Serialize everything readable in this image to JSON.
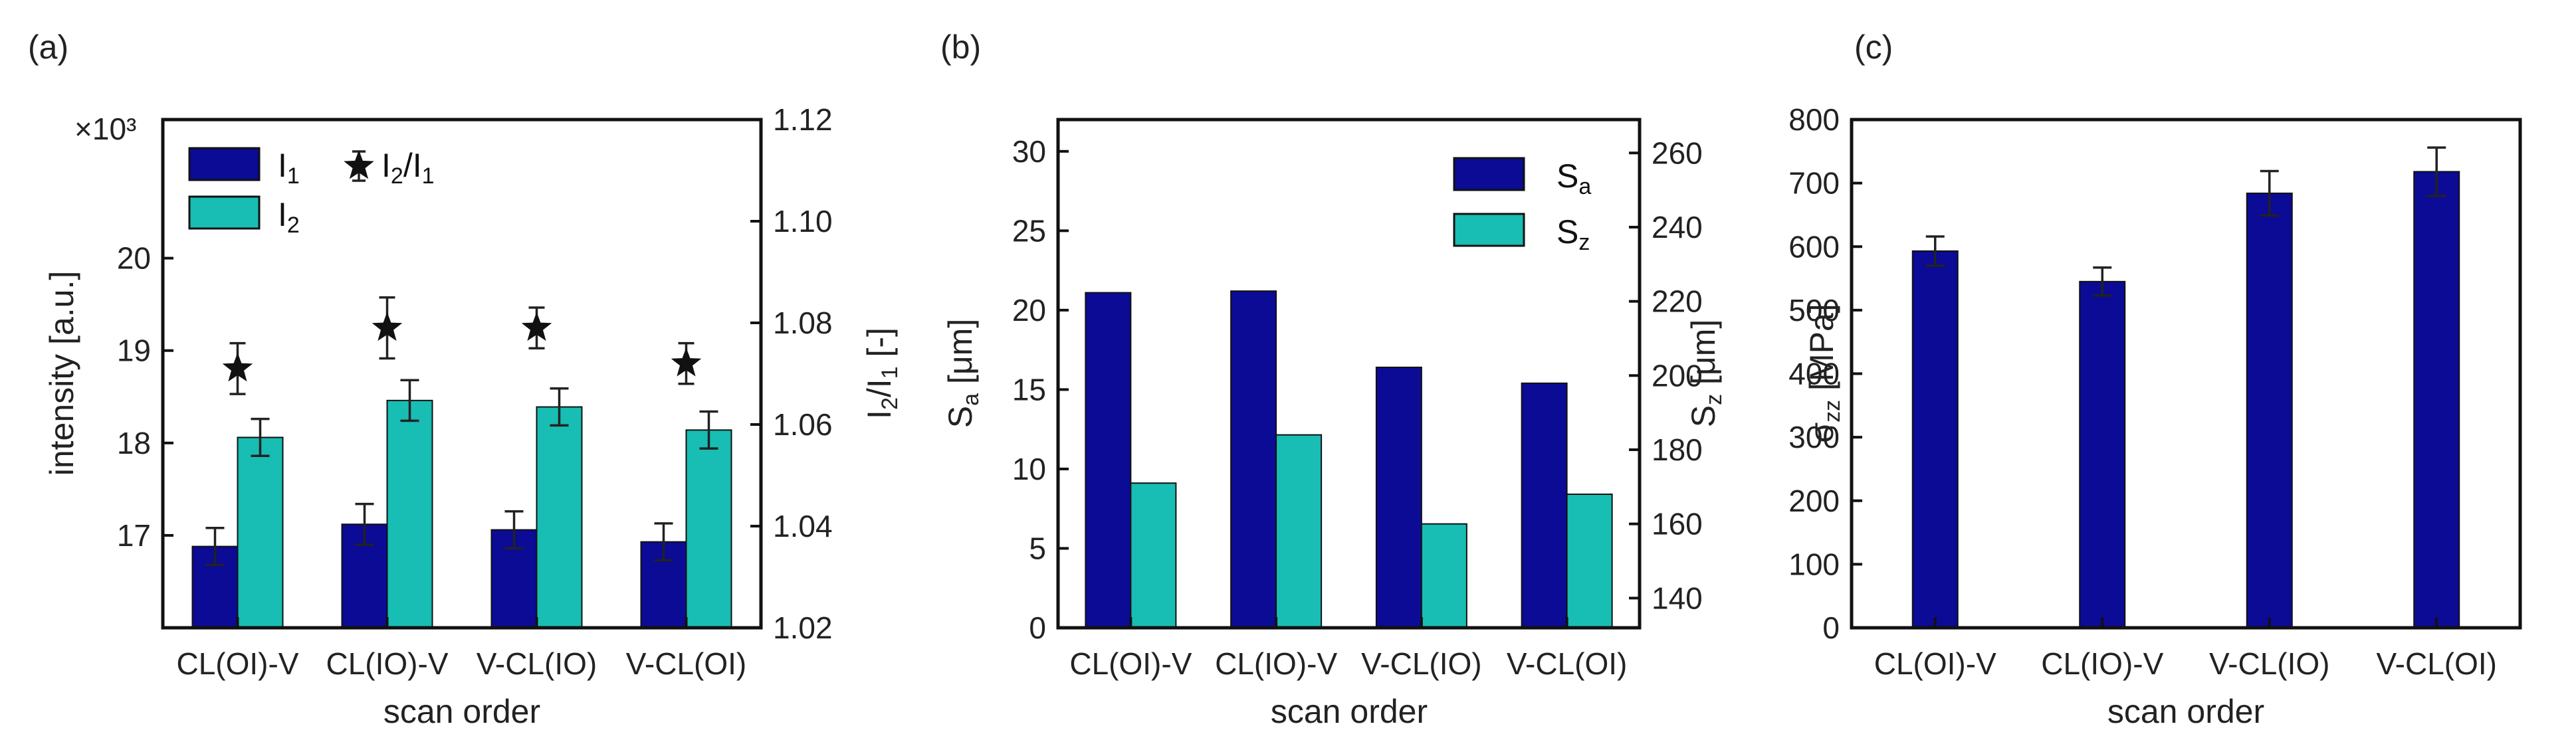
{
  "colors": {
    "series1": "#0b0b96",
    "series2": "#18bdb3",
    "axis_left_b": "#1a1a8c",
    "axis_right_b": "#2aa39b",
    "marker": "#111111"
  },
  "chart_data": [
    {
      "panel": "(a)",
      "type": "bar",
      "categories": [
        "CL(OI)-V",
        "CL(IO)-V",
        "V-CL(IO)",
        "V-CL(OI)"
      ],
      "xlabel": "scan order",
      "ylabel": "intensity [a.u.]",
      "ylabel_right": "I2/I1 [-]",
      "multiplier": "×10³",
      "ylim": [
        16.0,
        21.5
      ],
      "yticks": [
        "17",
        "18",
        "19",
        "20"
      ],
      "yticks_values": [
        17,
        18,
        19,
        20
      ],
      "ylim_right": [
        1.02,
        1.12
      ],
      "yticks_right": [
        "1.02",
        "1.04",
        "1.06",
        "1.08",
        "1.10",
        "1.12"
      ],
      "yticks_right_values": [
        1.02,
        1.04,
        1.06,
        1.08,
        1.1,
        1.12
      ],
      "legend": [
        {
          "kind": "bar",
          "series": 0,
          "base": "I",
          "sub": "1"
        },
        {
          "kind": "bar",
          "series": 1,
          "base": "I",
          "sub": "2"
        },
        {
          "kind": "star",
          "parts": [
            [
              "I",
              ""
            ],
            [
              "2",
              "sub"
            ],
            [
              "/I",
              ""
            ],
            [
              "1",
              "sub"
            ]
          ]
        }
      ],
      "series": [
        {
          "name": "I1",
          "values": [
            16.88,
            17.12,
            17.06,
            16.93
          ],
          "errors": [
            0.2,
            0.22,
            0.2,
            0.2
          ]
        },
        {
          "name": "I2",
          "values": [
            18.06,
            18.46,
            18.39,
            18.14
          ],
          "errors": [
            0.2,
            0.22,
            0.2,
            0.2
          ]
        }
      ],
      "markers": {
        "name": "I2/I1",
        "values": [
          1.071,
          1.079,
          1.079,
          1.072
        ],
        "errors": [
          0.005,
          0.006,
          0.004,
          0.004
        ]
      }
    },
    {
      "panel": "(b)",
      "type": "bar",
      "categories": [
        "CL(OI)-V",
        "CL(IO)-V",
        "V-CL(IO)",
        "V-CL(OI)"
      ],
      "xlabel": "scan order",
      "ylabel": "Sa [μm]",
      "ylabel_right": "Sz [μm]",
      "ylim": [
        0,
        32
      ],
      "yticks": [
        "0",
        "5",
        "10",
        "15",
        "20",
        "25",
        "30"
      ],
      "yticks_values": [
        0,
        5,
        10,
        15,
        20,
        25,
        30
      ],
      "ylim_right": [
        132,
        269
      ],
      "yticks_right": [
        "140",
        "160",
        "180",
        "200",
        "220",
        "240",
        "260"
      ],
      "yticks_right_values": [
        140,
        160,
        180,
        200,
        220,
        240,
        260
      ],
      "legend": [
        {
          "kind": "bar",
          "series": 0,
          "base": "S",
          "sub": "a"
        },
        {
          "kind": "bar",
          "series": 1,
          "base": "S",
          "sub": "z"
        }
      ],
      "series": [
        {
          "name": "Sa",
          "axis": "left",
          "values": [
            21.1,
            21.2,
            16.4,
            15.4
          ]
        },
        {
          "name": "Sz",
          "axis": "right",
          "values": [
            171,
            184,
            160,
            168
          ]
        }
      ]
    },
    {
      "panel": "(c)",
      "type": "bar",
      "categories": [
        "CL(OI)-V",
        "CL(IO)-V",
        "V-CL(IO)",
        "V-CL(OI)"
      ],
      "xlabel": "scan order",
      "ylabel": "σzz [MPa]",
      "ylim": [
        0,
        800
      ],
      "yticks": [
        "0",
        "100",
        "200",
        "300",
        "400",
        "500",
        "600",
        "700",
        "800"
      ],
      "yticks_values": [
        0,
        100,
        200,
        300,
        400,
        500,
        600,
        700,
        800
      ],
      "series": [
        {
          "name": "σzz",
          "values": [
            593,
            545,
            684,
            718
          ],
          "errors": [
            23,
            22,
            35,
            38
          ]
        }
      ]
    }
  ]
}
